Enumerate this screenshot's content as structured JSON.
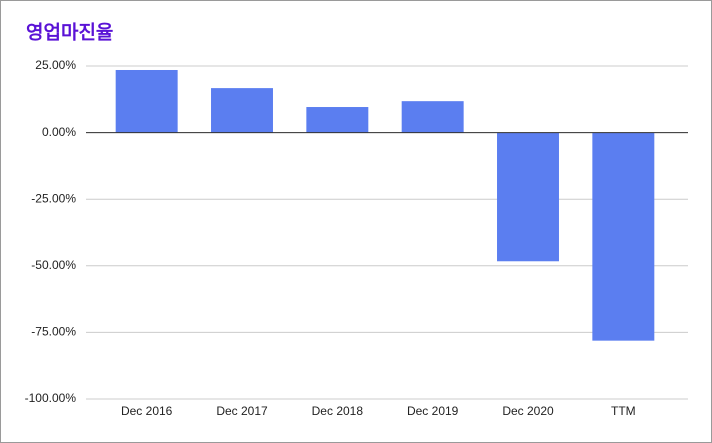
{
  "chart_data": {
    "type": "bar",
    "title": "영업마진율",
    "categories": [
      "Dec 2016",
      "Dec 2017",
      "Dec 2018",
      "Dec 2019",
      "Dec 2020",
      "TTM"
    ],
    "values": [
      23.5,
      16.7,
      9.6,
      11.8,
      -48.3,
      -78.1
    ],
    "color": "#5b7ef0",
    "ylim": [
      -100,
      25
    ],
    "yticks": [
      {
        "value": 25,
        "label": "25.00%"
      },
      {
        "value": 0,
        "label": "0.00%"
      },
      {
        "value": -25,
        "label": "-25.00%"
      },
      {
        "value": -50,
        "label": "-50.00%"
      },
      {
        "value": -75,
        "label": "-75.00%"
      },
      {
        "value": -100,
        "label": "-100.00%"
      }
    ],
    "grid": true
  }
}
